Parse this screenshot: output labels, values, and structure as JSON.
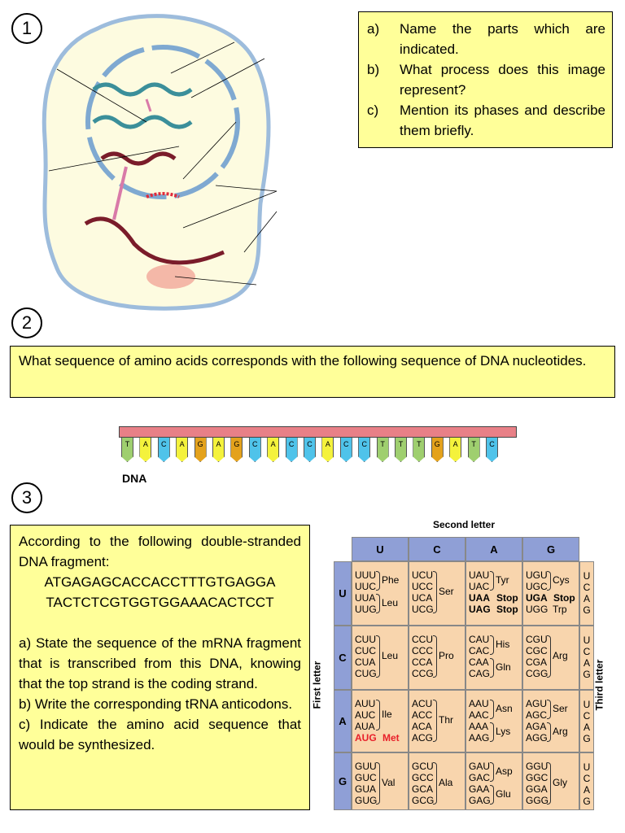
{
  "numbers": [
    "1",
    "2",
    "3"
  ],
  "q1": [
    {
      "l": "a)",
      "t": "Name the parts which are indicated."
    },
    {
      "l": "b)",
      "t": "What process does this image represent?"
    },
    {
      "l": "c)",
      "t": "Mention its phases and describe them briefly."
    }
  ],
  "q2": "What sequence of amino acids corresponds with the following sequence of DNA nucleotides.",
  "dna": {
    "label": "DNA",
    "sequence": [
      "T",
      "A",
      "C",
      "A",
      "G",
      "A",
      "G",
      "C",
      "A",
      "C",
      "C",
      "A",
      "C",
      "C",
      "T",
      "T",
      "T",
      "G",
      "A",
      "T",
      "C"
    ],
    "colors": {
      "T": "#9fcf6f",
      "A": "#f4f23c",
      "C": "#4fc3ea",
      "G": "#e4a21c"
    }
  },
  "q3": {
    "intro": "According to the following double-stranded DNA fragment:",
    "strand1": "ATGAGAGCACCACCTTTGTGAGGA",
    "strand2": "TACTCTCGTGGTGGAAACACTCCT",
    "a": "a) State the sequence of the mRNA fragment that is transcribed from this DNA, knowing that the top strand is the coding strand.",
    "b": "b) Write the corresponding tRNA anticodons.",
    "c": "c) Indicate the amino acid sequence that would be synthesized."
  },
  "codon_table": {
    "second_letter": "Second letter",
    "first_letter": "First letter",
    "third_letter": "Third letter",
    "bases": [
      "U",
      "C",
      "A",
      "G"
    ],
    "rows": [
      [
        {
          "codons": [
            "UUU",
            "UUC",
            "UUA",
            "UUG"
          ],
          "groups": [
            [
              "Phe",
              0,
              1
            ],
            [
              "Leu",
              2,
              3
            ]
          ]
        },
        {
          "codons": [
            "UCU",
            "UCC",
            "UCA",
            "UCG"
          ],
          "groups": [
            [
              "Ser",
              0,
              3
            ]
          ]
        },
        {
          "codons": [
            "UAU",
            "UAC",
            "UAA",
            "UAG"
          ],
          "groups": [
            [
              "Tyr",
              0,
              1
            ],
            [
              "Stop",
              2,
              2,
              "bold"
            ],
            [
              "Stop",
              3,
              3,
              "bold"
            ]
          ]
        },
        {
          "codons": [
            "UGU",
            "UGC",
            "UGA",
            "UGG"
          ],
          "groups": [
            [
              "Cys",
              0,
              1
            ],
            [
              "Stop",
              2,
              2,
              "bold"
            ],
            [
              "Trp",
              3,
              3
            ]
          ]
        }
      ],
      [
        {
          "codons": [
            "CUU",
            "CUC",
            "CUA",
            "CUG"
          ],
          "groups": [
            [
              "Leu",
              0,
              3
            ]
          ]
        },
        {
          "codons": [
            "CCU",
            "CCC",
            "CCA",
            "CCG"
          ],
          "groups": [
            [
              "Pro",
              0,
              3
            ]
          ]
        },
        {
          "codons": [
            "CAU",
            "CAC",
            "CAA",
            "CAG"
          ],
          "groups": [
            [
              "His",
              0,
              1
            ],
            [
              "Gln",
              2,
              3
            ]
          ]
        },
        {
          "codons": [
            "CGU",
            "CGC",
            "CGA",
            "CGG"
          ],
          "groups": [
            [
              "Arg",
              0,
              3
            ]
          ]
        }
      ],
      [
        {
          "codons": [
            "AUU",
            "AUC",
            "AUA",
            "AUG"
          ],
          "groups": [
            [
              "Ile",
              0,
              2
            ],
            [
              "Met",
              3,
              3,
              "red"
            ]
          ]
        },
        {
          "codons": [
            "ACU",
            "ACC",
            "ACA",
            "ACG"
          ],
          "groups": [
            [
              "Thr",
              0,
              3
            ]
          ]
        },
        {
          "codons": [
            "AAU",
            "AAC",
            "AAA",
            "AAG"
          ],
          "groups": [
            [
              "Asn",
              0,
              1
            ],
            [
              "Lys",
              2,
              3
            ]
          ]
        },
        {
          "codons": [
            "AGU",
            "AGC",
            "AGA",
            "AGG"
          ],
          "groups": [
            [
              "Ser",
              0,
              1
            ],
            [
              "Arg",
              2,
              3
            ]
          ]
        }
      ],
      [
        {
          "codons": [
            "GUU",
            "GUC",
            "GUA",
            "GUG"
          ],
          "groups": [
            [
              "Val",
              0,
              3
            ]
          ]
        },
        {
          "codons": [
            "GCU",
            "GCC",
            "GCA",
            "GCG"
          ],
          "groups": [
            [
              "Ala",
              0,
              3
            ]
          ]
        },
        {
          "codons": [
            "GAU",
            "GAC",
            "GAA",
            "GAG"
          ],
          "groups": [
            [
              "Asp",
              0,
              1
            ],
            [
              "Glu",
              2,
              3
            ]
          ]
        },
        {
          "codons": [
            "GGU",
            "GGC",
            "GGA",
            "GGG"
          ],
          "groups": [
            [
              "Gly",
              0,
              3
            ]
          ]
        }
      ]
    ],
    "colors": {
      "header": "#8f9fd6",
      "cell": "#f8d5ad",
      "highlight": "#e8202a"
    }
  }
}
